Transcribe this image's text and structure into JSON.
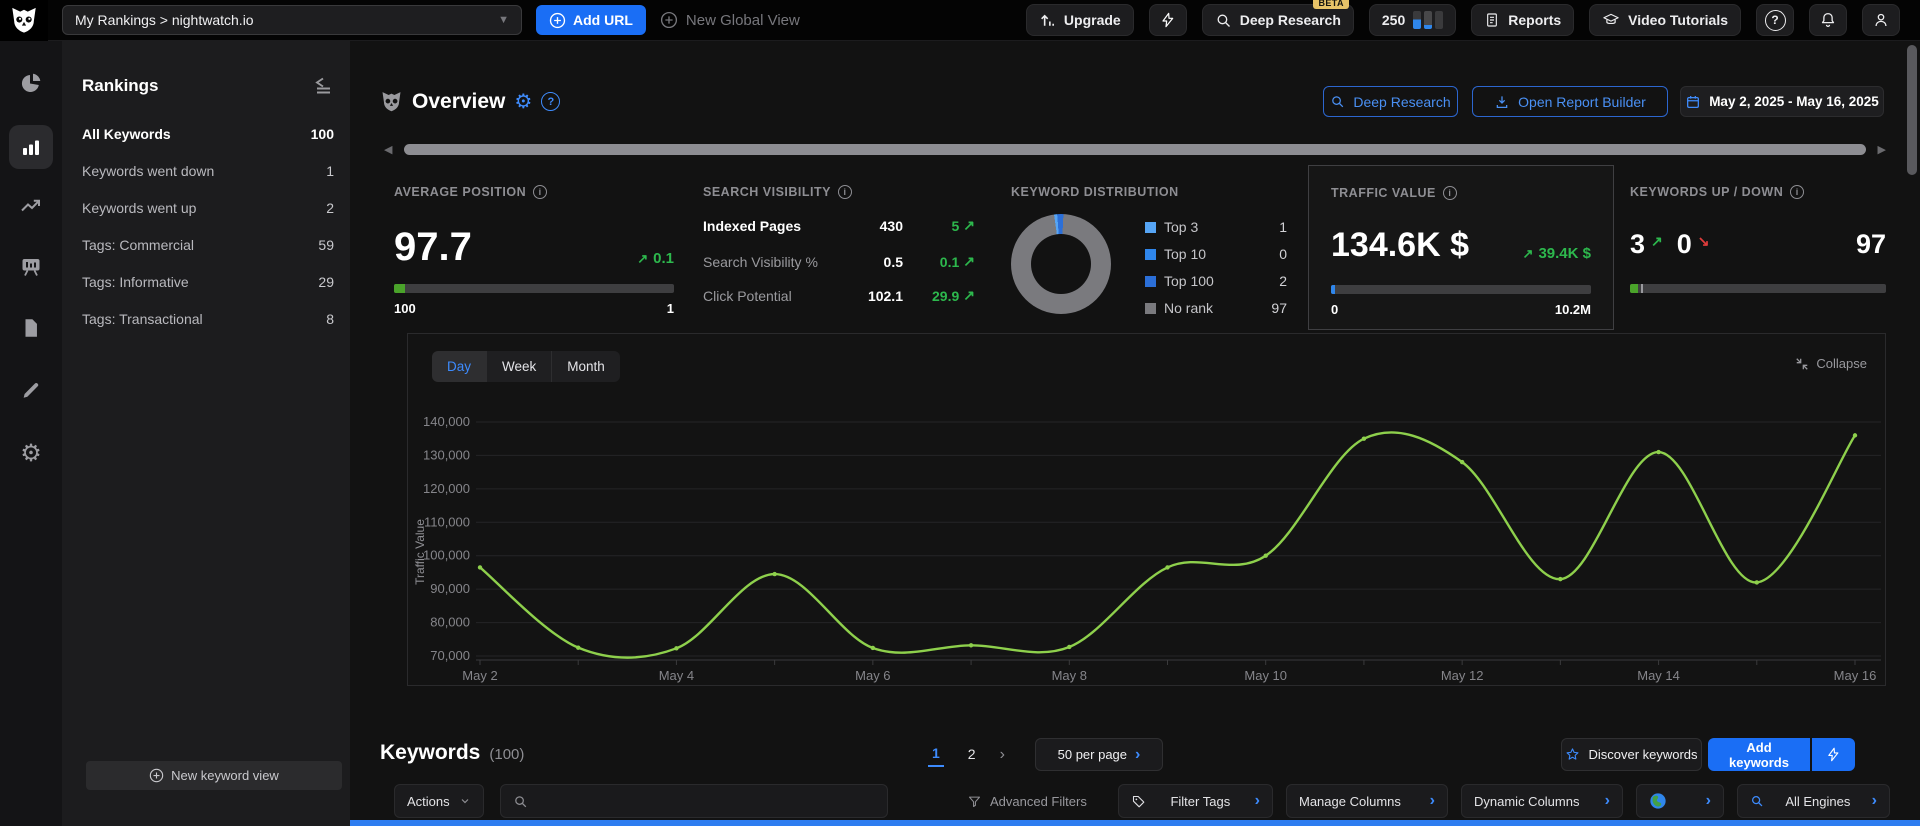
{
  "topbar": {
    "project": "My Rankings > nightwatch.io",
    "add_url": "Add URL",
    "new_global_view": "New Global View",
    "upgrade": "Upgrade",
    "deep_research": "Deep Research",
    "beta": "BETA",
    "credits": "250",
    "reports": "Reports",
    "video_tutorials": "Video Tutorials"
  },
  "sidebar": {
    "title": "Rankings",
    "items": [
      {
        "label": "All Keywords",
        "count": "100"
      },
      {
        "label": "Keywords went down",
        "count": "1"
      },
      {
        "label": "Keywords went up",
        "count": "2"
      },
      {
        "label": "Tags: Commercial",
        "count": "59"
      },
      {
        "label": "Tags: Informative",
        "count": "29"
      },
      {
        "label": "Tags: Transactional",
        "count": "8"
      }
    ],
    "new_keyword_view": "New keyword view"
  },
  "overview": {
    "title": "Overview",
    "deep_research": "Deep Research",
    "open_report_builder": "Open Report Builder",
    "date_range": "May 2, 2025 - May 16, 2025"
  },
  "cards": {
    "average_position": {
      "label": "AVERAGE POSITION",
      "value": "97.7",
      "delta": "0.1",
      "scale_left": "100",
      "scale_right": "1"
    },
    "search_visibility": {
      "label": "SEARCH VISIBILITY",
      "rows": [
        {
          "name": "Indexed Pages",
          "value": "430",
          "delta": "5"
        },
        {
          "name": "Search Visibility %",
          "value": "0.5",
          "delta": "0.1"
        },
        {
          "name": "Click Potential",
          "value": "102.1",
          "delta": "29.9"
        }
      ]
    },
    "keyword_distribution": {
      "label": "KEYWORD DISTRIBUTION",
      "legend": [
        {
          "label": "Top 3",
          "value": "1",
          "color": "#56a5f5"
        },
        {
          "label": "Top 10",
          "value": "0",
          "color": "#2f86eb"
        },
        {
          "label": "Top 100",
          "value": "2",
          "color": "#2b6fd8"
        },
        {
          "label": "No rank",
          "value": "97",
          "color": "#7a7a7e"
        }
      ],
      "ring_color": "#47474a"
    },
    "traffic_value": {
      "label": "TRAFFIC VALUE",
      "value": "134.6K $",
      "delta": "39.4K $",
      "scale_left": "0",
      "scale_right": "10.2M"
    },
    "keywords_up_down": {
      "label": "KEYWORDS UP / DOWN",
      "up": "3",
      "down": "0",
      "no_change": "97"
    }
  },
  "chart_data": {
    "type": "line",
    "tabs": [
      "Day",
      "Week",
      "Month"
    ],
    "active_tab": "Day",
    "collapse_label": "Collapse",
    "ylabel": "Traffic Value",
    "ylim": [
      70000,
      140000
    ],
    "ytick_step": 10000,
    "xtick_every": 2,
    "grid": true,
    "x": [
      "May 2",
      "May 3",
      "May 4",
      "May 5",
      "May 6",
      "May 7",
      "May 8",
      "May 9",
      "May 10",
      "May 11",
      "May 12",
      "May 13",
      "May 14",
      "May 15",
      "May 16"
    ],
    "series": [
      {
        "name": "Traffic Value",
        "color": "#8ed04c",
        "values": [
          96500,
          72500,
          72300,
          94500,
          72400,
          73200,
          72700,
          96500,
          100000,
          135000,
          128000,
          93000,
          131000,
          92000,
          136000
        ]
      }
    ]
  },
  "keywords": {
    "title": "Keywords",
    "count": "(100)",
    "pages": [
      "1",
      "2"
    ],
    "per_page": "50 per page",
    "discover": "Discover keywords",
    "add": "Add keywords"
  },
  "toolbar": {
    "actions": "Actions",
    "advanced_filters": "Advanced Filters",
    "filter_tags": "Filter Tags",
    "manage_columns": "Manage Columns",
    "dynamic_columns": "Dynamic Columns",
    "all_engines": "All Engines"
  }
}
